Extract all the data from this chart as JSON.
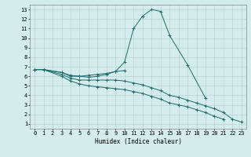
{
  "xlabel": "Humidex (Indice chaleur)",
  "background_color": "#d5ecec",
  "line_color": "#1e6b6b",
  "grid_color": "#b8d4d4",
  "xlim": [
    -0.5,
    23.5
  ],
  "ylim": [
    0.5,
    13.5
  ],
  "xticks": [
    0,
    1,
    2,
    3,
    4,
    5,
    6,
    7,
    8,
    9,
    10,
    11,
    12,
    13,
    14,
    15,
    16,
    17,
    18,
    19,
    20,
    21,
    22,
    23
  ],
  "yticks": [
    1,
    2,
    3,
    4,
    5,
    6,
    7,
    8,
    9,
    10,
    11,
    12,
    13
  ],
  "series": [
    {
      "x": [
        0,
        1,
        3,
        4,
        5,
        6,
        7,
        8,
        9,
        10,
        11,
        12,
        13,
        14,
        15,
        17,
        19
      ],
      "y": [
        6.7,
        6.7,
        6.4,
        6.0,
        6.0,
        5.9,
        6.0,
        6.2,
        6.5,
        7.5,
        11.0,
        12.3,
        13.0,
        12.8,
        10.3,
        7.2,
        3.7
      ]
    },
    {
      "x": [
        0,
        1,
        3,
        4,
        5,
        6,
        7,
        8,
        9,
        10
      ],
      "y": [
        6.7,
        6.7,
        6.4,
        6.1,
        6.0,
        6.1,
        6.2,
        6.3,
        6.5,
        6.6
      ]
    },
    {
      "x": [
        0,
        1,
        3,
        4,
        5,
        6,
        7,
        8,
        9,
        10,
        11,
        12,
        13,
        14,
        15,
        16,
        17,
        18,
        19,
        20,
        21,
        22,
        23
      ],
      "y": [
        6.7,
        6.7,
        6.2,
        5.8,
        5.6,
        5.6,
        5.6,
        5.6,
        5.6,
        5.5,
        5.3,
        5.1,
        4.8,
        4.5,
        4.0,
        3.8,
        3.5,
        3.2,
        2.9,
        2.6,
        2.2,
        1.5,
        1.2
      ]
    },
    {
      "x": [
        0,
        1,
        3,
        4,
        5,
        6,
        7,
        8,
        9,
        10,
        11,
        12,
        13,
        14,
        15,
        16,
        17,
        18,
        19,
        20,
        21
      ],
      "y": [
        6.7,
        6.7,
        6.0,
        5.5,
        5.2,
        5.0,
        4.9,
        4.8,
        4.7,
        4.6,
        4.4,
        4.2,
        3.9,
        3.6,
        3.2,
        3.0,
        2.8,
        2.5,
        2.2,
        1.8,
        1.5
      ]
    }
  ]
}
